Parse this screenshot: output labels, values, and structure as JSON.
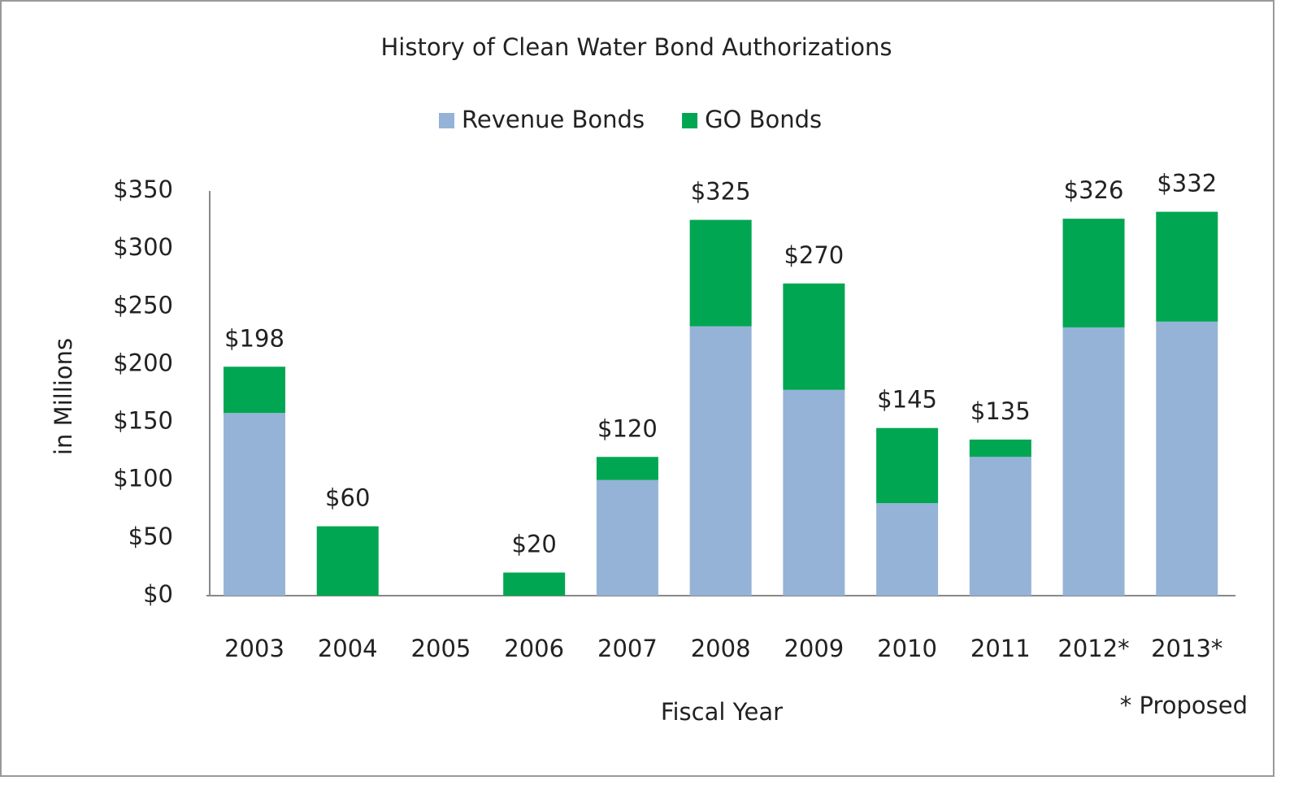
{
  "chart_data": {
    "type": "stacked_bar",
    "title": "History of Clean Water Bond Authorizations",
    "x_label": "Fiscal Year",
    "y_label": "in Millions",
    "note": "* Proposed",
    "categories": [
      "2003",
      "2004",
      "2005",
      "2006",
      "2007",
      "2008",
      "2009",
      "2010",
      "2011",
      "2012*",
      "2013*"
    ],
    "series": [
      {
        "name": "Revenue Bonds",
        "color": "#95b3d7",
        "values": [
          158,
          0,
          0,
          0,
          100,
          233,
          178,
          80,
          120,
          232,
          237
        ]
      },
      {
        "name": "GO Bonds",
        "color": "#00a651",
        "values": [
          40,
          60,
          0,
          20,
          20,
          92,
          92,
          65,
          15,
          94,
          95
        ]
      }
    ],
    "totals": [
      198,
      60,
      null,
      20,
      120,
      325,
      270,
      145,
      135,
      326,
      332
    ],
    "value_labels": [
      "$198",
      "$60",
      null,
      "$20",
      "$120",
      "$325",
      "$270",
      "$145",
      "$135",
      "$326",
      "$332"
    ],
    "ylim": [
      0,
      350
    ],
    "yticks": [
      {
        "value": 0,
        "label": "$0"
      },
      {
        "value": 50,
        "label": "$50"
      },
      {
        "value": 100,
        "label": "$100"
      },
      {
        "value": 150,
        "label": "$150"
      },
      {
        "value": 200,
        "label": "$200"
      },
      {
        "value": 250,
        "label": "$250"
      },
      {
        "value": 300,
        "label": "$300"
      },
      {
        "value": 350,
        "label": "$350"
      }
    ],
    "grid": false,
    "legend": "top"
  }
}
